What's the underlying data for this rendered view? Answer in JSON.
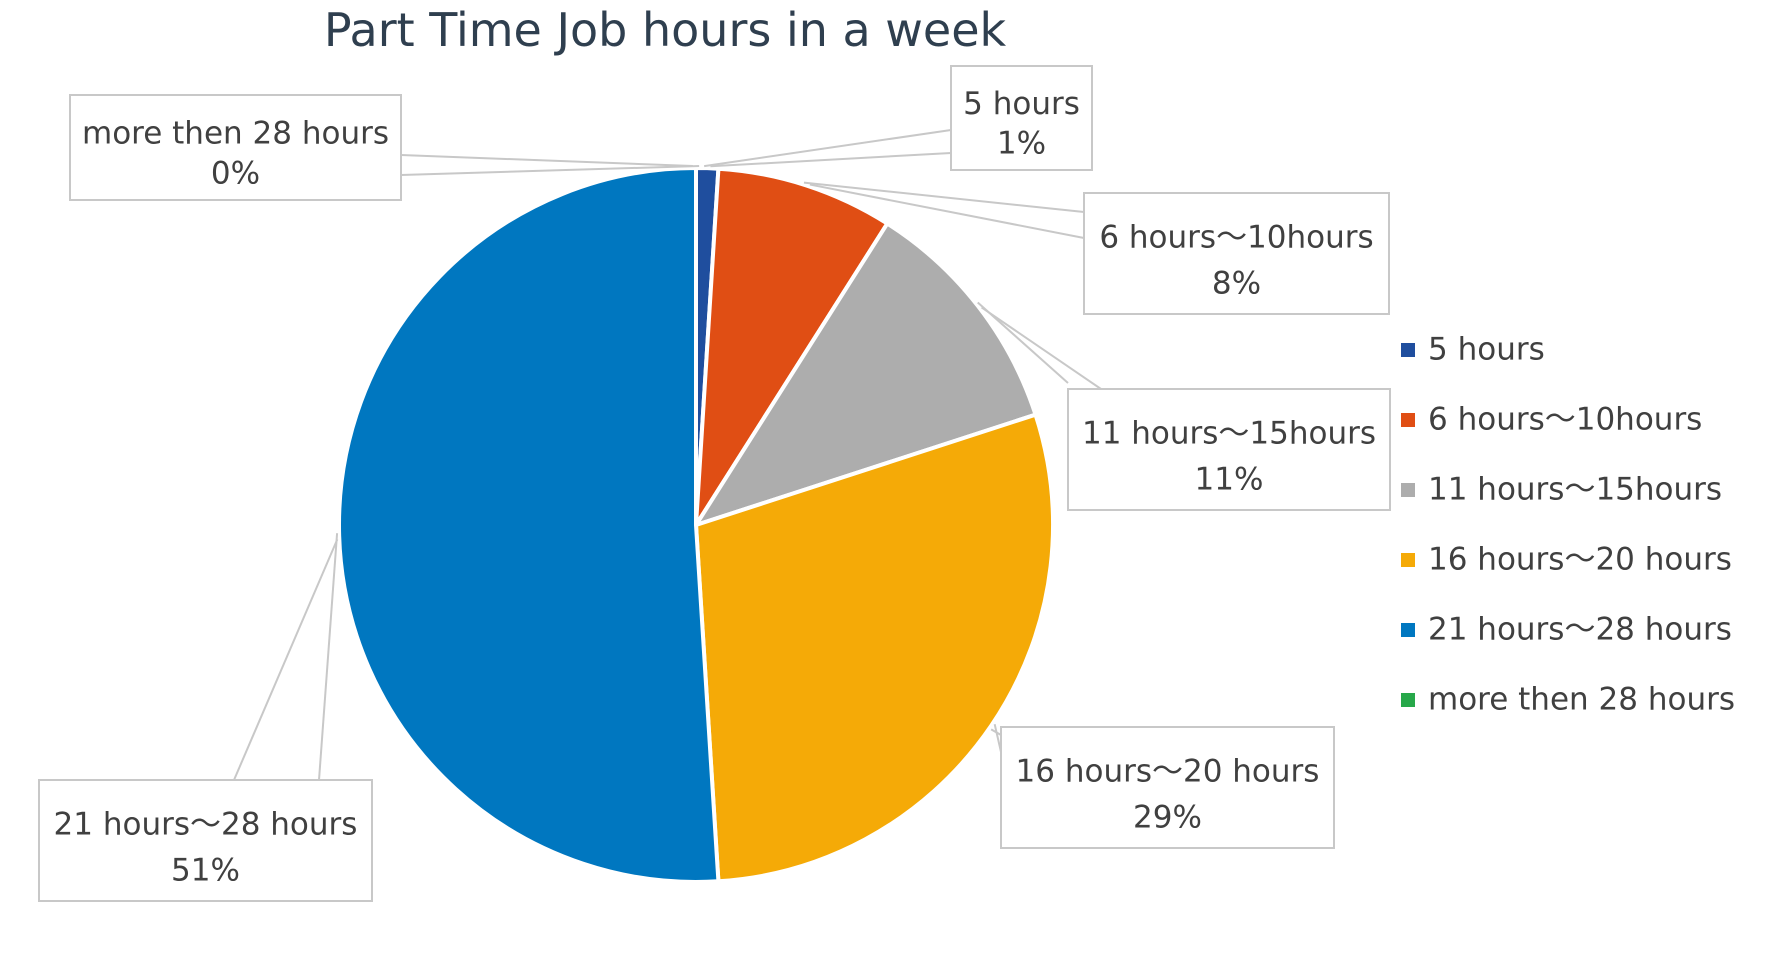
{
  "chart_data": {
    "type": "pie",
    "title": "Part Time Job hours in a week",
    "slices": [
      {
        "label": "5 hours",
        "value": 1,
        "value_label": "1%",
        "color": "#1f4e9e"
      },
      {
        "label": "6 hours～10hours",
        "value": 8,
        "value_label": "8%",
        "color": "#e04e14"
      },
      {
        "label": "11 hours～15hours",
        "value": 11,
        "value_label": "11%",
        "color": "#adadad"
      },
      {
        "label": "16 hours～20 hours",
        "value": 29,
        "value_label": "29%",
        "color": "#f5aa07"
      },
      {
        "label": "21 hours～28 hours",
        "value": 51,
        "value_label": "51%",
        "color": "#0077c0"
      },
      {
        "label": "more then 28 hours",
        "value": 0,
        "value_label": "0%",
        "color": "#27a84a"
      }
    ],
    "legend": {
      "position": "right",
      "labels": [
        "5 hours",
        "6 hours～10hours",
        "11 hours～15hours",
        "16 hours～20 hours",
        "21 hours～28 hours",
        "more then 28 hours"
      ]
    }
  }
}
